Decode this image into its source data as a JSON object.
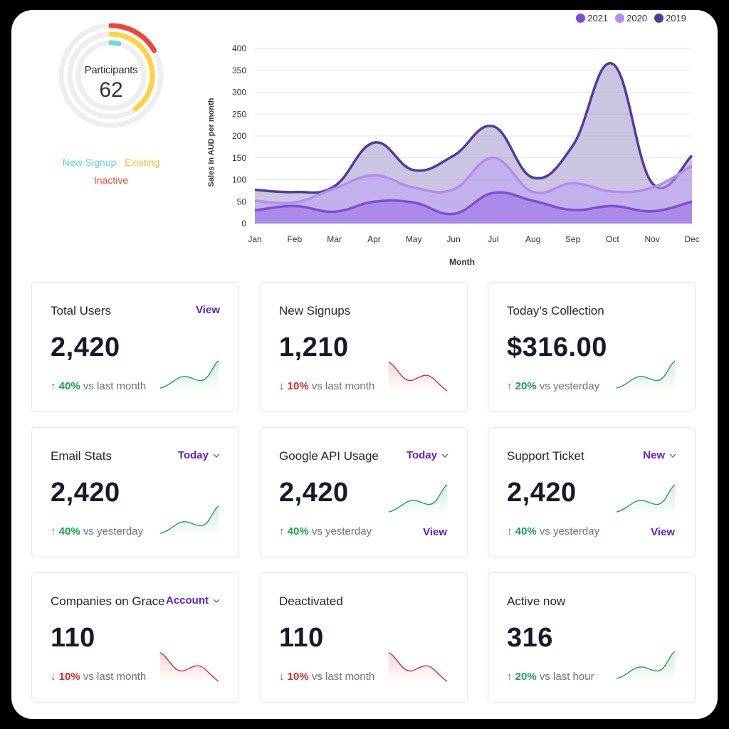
{
  "donut": {
    "label": "Participants",
    "value": "62",
    "legend": [
      {
        "name": "New Signup",
        "color": "#6fdcd3"
      },
      {
        "name": "Existing",
        "color": "#ffd23f"
      },
      {
        "name": "Inactive",
        "color": "#f44336"
      }
    ]
  },
  "chart_data": {
    "type": "area",
    "categories": [
      "Jan",
      "Feb",
      "Mar",
      "Apr",
      "May",
      "Jun",
      "Jul",
      "Aug",
      "Sep",
      "Oct",
      "Nov",
      "Dec"
    ],
    "series": [
      {
        "name": "2021",
        "color": "#7b4fd6",
        "values": [
          30,
          40,
          27,
          50,
          48,
          22,
          70,
          52,
          31,
          40,
          28,
          50
        ]
      },
      {
        "name": "2020",
        "color": "#b08cf2",
        "values": [
          52,
          48,
          80,
          110,
          82,
          78,
          150,
          72,
          92,
          73,
          82,
          132
        ]
      },
      {
        "name": "2019",
        "color": "#503ba0",
        "values": [
          77,
          72,
          85,
          185,
          122,
          155,
          222,
          105,
          178,
          365,
          92,
          155
        ]
      }
    ],
    "ylabel": "Sales in AUD per month",
    "xlabel": "Month",
    "yticks": [
      0,
      50,
      100,
      150,
      200,
      250,
      300,
      350,
      400
    ],
    "ylim": [
      0,
      400
    ],
    "grid": true,
    "legend_position": "top-right"
  },
  "cards": [
    {
      "title": "Total Users",
      "action": "View",
      "action_dropdown": false,
      "value": "2,420",
      "trend": "up",
      "delta": "40%",
      "delta_text": "vs last month",
      "link": ""
    },
    {
      "title": "New Signups",
      "action": "",
      "action_dropdown": false,
      "value": "1,210",
      "trend": "down",
      "delta": "10%",
      "delta_text": "vs last month",
      "link": ""
    },
    {
      "title": "Today’s Collection",
      "action": "",
      "action_dropdown": false,
      "value": "$316.00",
      "trend": "up",
      "delta": "20%",
      "delta_text": "vs yesterday",
      "link": ""
    },
    {
      "title": "Email Stats",
      "action": "Today",
      "action_dropdown": true,
      "value": "2,420",
      "trend": "up",
      "delta": "40%",
      "delta_text": "vs yesterday",
      "link": ""
    },
    {
      "title": "Google API Usage",
      "action": "Today",
      "action_dropdown": true,
      "value": "2,420",
      "trend": "up",
      "delta": "40%",
      "delta_text": "vs yesterday",
      "link": "View"
    },
    {
      "title": "Support Ticket",
      "action": "New",
      "action_dropdown": true,
      "value": "2,420",
      "trend": "up",
      "delta": "40%",
      "delta_text": "vs yesterday",
      "link": "View"
    },
    {
      "title": "Companies on Grace",
      "action": "Account",
      "action_dropdown": true,
      "value": "110",
      "trend": "down",
      "delta": "10%",
      "delta_text": "vs last month",
      "link": ""
    },
    {
      "title": "Deactivated",
      "action": "",
      "action_dropdown": false,
      "value": "110",
      "trend": "down",
      "delta": "10%",
      "delta_text": "vs last month",
      "link": ""
    },
    {
      "title": "Active now",
      "action": "",
      "action_dropdown": false,
      "value": "316",
      "trend": "up",
      "delta": "20%",
      "delta_text": "vs last hour",
      "link": ""
    }
  ],
  "colors": {
    "accent": "#5b21d6",
    "up": "#16a34a",
    "down": "#dc2626"
  }
}
